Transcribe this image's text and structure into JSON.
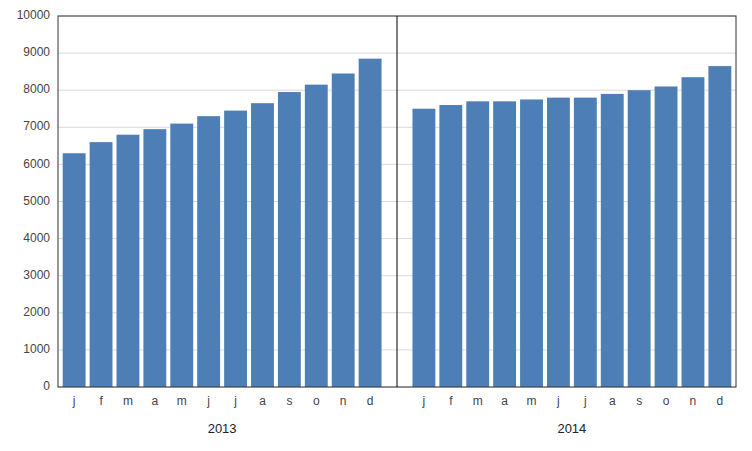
{
  "chart_data": {
    "type": "bar",
    "categories": [
      "j",
      "f",
      "m",
      "a",
      "m",
      "j",
      "j",
      "a",
      "s",
      "o",
      "n",
      "d",
      "j",
      "f",
      "m",
      "a",
      "m",
      "j",
      "j",
      "a",
      "s",
      "o",
      "n",
      "d"
    ],
    "values": [
      6300,
      6600,
      6800,
      6950,
      7100,
      7300,
      7450,
      7650,
      7950,
      8150,
      8450,
      8850,
      7500,
      7600,
      7700,
      7700,
      7750,
      7800,
      7800,
      7900,
      8000,
      8100,
      8350,
      8650
    ],
    "annotations": [
      "2013",
      "2014"
    ],
    "color": "#4d7eb5",
    "ylim": [
      0,
      10000
    ],
    "yticks": [
      0,
      1000,
      2000,
      3000,
      4000,
      5000,
      6000,
      7000,
      8000,
      9000,
      10000
    ],
    "grid": true
  }
}
